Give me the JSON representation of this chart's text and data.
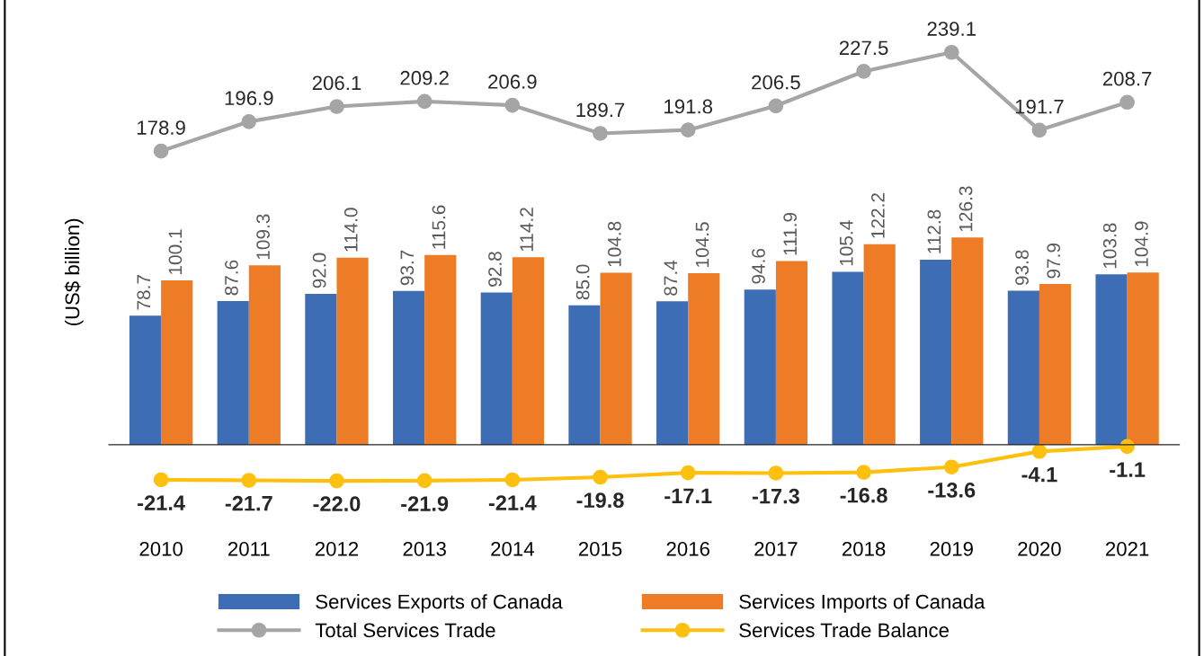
{
  "chart_data": {
    "type": "bar",
    "ylabel": "(US$ billion)",
    "categories": [
      "2010",
      "2011",
      "2012",
      "2013",
      "2014",
      "2015",
      "2016",
      "2017",
      "2018",
      "2019",
      "2020",
      "2021"
    ],
    "series": [
      {
        "name": "Services Exports of Canada",
        "color": "#3c6db5",
        "values": [
          78.7,
          87.6,
          92.0,
          93.7,
          92.8,
          85.0,
          87.4,
          94.6,
          105.4,
          112.8,
          93.8,
          103.8
        ],
        "value_labels": [
          "78.7",
          "87.6",
          "92.0",
          "93.7",
          "92.8",
          "85.0",
          "87.4",
          "94.6",
          "105.4",
          "112.8",
          "93.8",
          "103.8"
        ]
      },
      {
        "name": "Services Imports of Canada",
        "color": "#ee7b26",
        "values": [
          100.1,
          109.3,
          114.0,
          115.6,
          114.2,
          104.8,
          104.5,
          111.9,
          122.2,
          126.3,
          97.9,
          104.9
        ],
        "value_labels": [
          "100.1",
          "109.3",
          "114.0",
          "115.6",
          "114.2",
          "104.8",
          "104.5",
          "111.9",
          "122.2",
          "126.3",
          "97.9",
          "104.9"
        ]
      },
      {
        "name": "Total Services Trade",
        "type": "line",
        "color": "#a5a5a5",
        "values": [
          178.9,
          196.9,
          206.1,
          209.2,
          206.9,
          189.7,
          191.8,
          206.5,
          227.5,
          239.1,
          191.7,
          208.7
        ],
        "value_labels": [
          "178.9",
          "196.9",
          "206.1",
          "209.2",
          "206.9",
          "189.7",
          "191.8",
          "206.5",
          "227.5",
          "239.1",
          "191.7",
          "208.7"
        ]
      },
      {
        "name": "Services Trade Balance",
        "type": "line",
        "color": "#fdc00f",
        "values": [
          -21.4,
          -21.7,
          -22.0,
          -21.9,
          -21.4,
          -19.8,
          -17.1,
          -17.3,
          -16.8,
          -13.6,
          -4.1,
          -1.1
        ],
        "value_labels": [
          "-21.4",
          "-21.7",
          "-22.0",
          "-21.9",
          "-21.4",
          "-19.8",
          "-17.1",
          "-17.3",
          "-16.8",
          "-13.6",
          "-4.1",
          "-1.1"
        ]
      }
    ],
    "legend": "bottom",
    "marker": "circle",
    "line_style": "solid"
  }
}
